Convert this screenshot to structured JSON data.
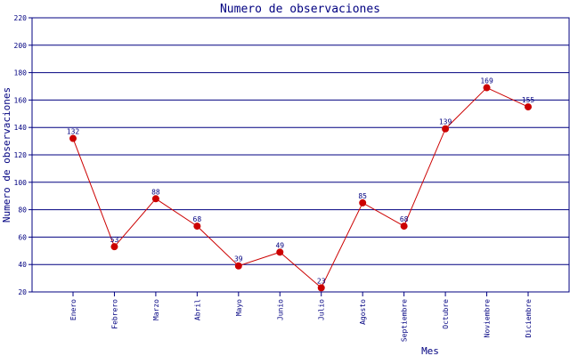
{
  "chart_data": {
    "type": "line",
    "title": "Numero de observaciones",
    "xlabel": "Mes",
    "ylabel": "Numero de observaciones",
    "categories": [
      "Enero",
      "Febrero",
      "Marzo",
      "Abril",
      "Mayo",
      "Junio",
      "Julio",
      "Agosto",
      "Septiembre",
      "Octubre",
      "Noviembre",
      "Diciembre"
    ],
    "values": [
      132,
      53,
      88,
      68,
      39,
      49,
      23,
      85,
      68,
      139,
      169,
      155
    ],
    "ylim": [
      20,
      220
    ],
    "yticks": [
      20,
      40,
      60,
      80,
      100,
      120,
      140,
      160,
      180,
      200,
      220
    ],
    "grid": true,
    "colors": {
      "line": "#cc0000",
      "marker": "#cc0000",
      "axis": "#000080",
      "grid": "#000080",
      "text": "#000080"
    }
  }
}
